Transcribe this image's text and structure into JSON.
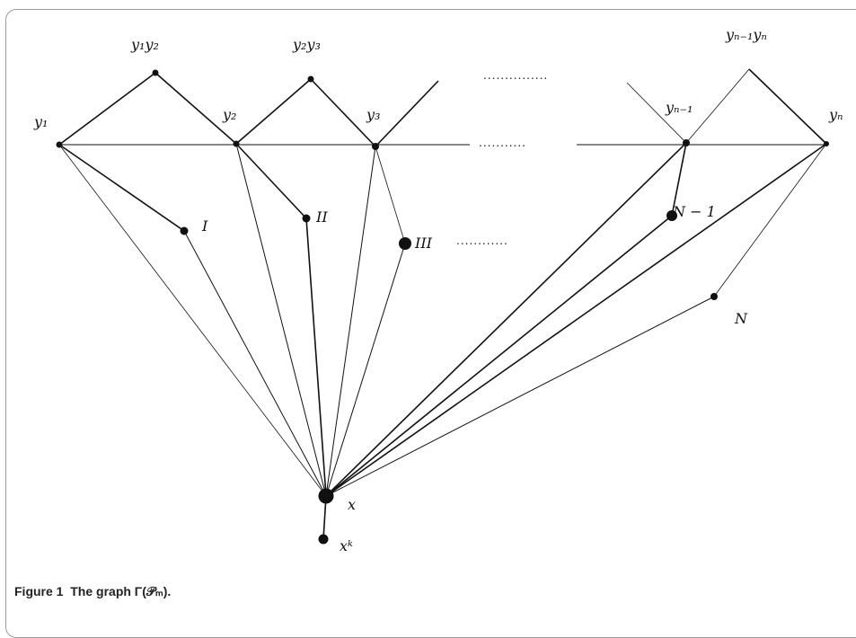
{
  "labels": {
    "y1y2": "y₁y₂",
    "y2y3": "y₂y₃",
    "yn1yn": "yₙ₋₁yₙ",
    "y1": "y₁",
    "y2": "y₂",
    "y3": "y₃",
    "yn1": "yₙ₋₁",
    "yn": "yₙ",
    "I": "I",
    "II": "II",
    "III": "III",
    "N1": "N − 1",
    "N": "N",
    "x": "x",
    "xk": "xᵏ"
  },
  "ellipsis": {
    "top": "...............",
    "mid": "...........",
    "row": "............"
  },
  "caption": {
    "figure_label": "Figure 1",
    "text": "The graph Γ(𝒫ₘ)."
  }
}
